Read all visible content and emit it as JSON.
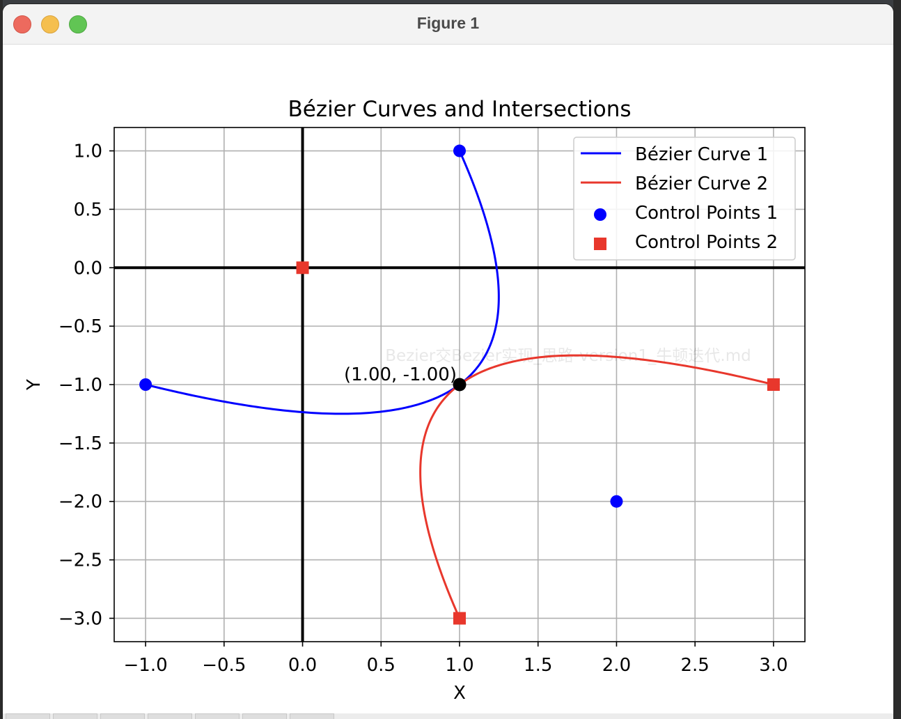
{
  "window": {
    "title": "Figure 1"
  },
  "chart_data": {
    "type": "line",
    "title": "Bézier Curves and Intersections",
    "xlabel": "X",
    "ylabel": "Y",
    "xlim": [
      -1.2,
      3.2
    ],
    "ylim": [
      -3.2,
      1.2
    ],
    "xticks": [
      -1.0,
      -0.5,
      0.0,
      0.5,
      1.0,
      1.5,
      2.0,
      2.5,
      3.0
    ],
    "xtick_labels": [
      "−1.0",
      "−0.5",
      "0.0",
      "0.5",
      "1.0",
      "1.5",
      "2.0",
      "2.5",
      "3.0"
    ],
    "yticks": [
      1.0,
      0.5,
      0.0,
      -0.5,
      -1.0,
      -1.5,
      -2.0,
      -2.5,
      -3.0
    ],
    "ytick_labels": [
      "1.0",
      "0.5",
      "0.0",
      "−0.5",
      "−1.0",
      "−1.5",
      "−2.0",
      "−2.5",
      "−3.0"
    ],
    "grid": true,
    "legend_position": "top-right",
    "series": [
      {
        "name": "Bézier Curve 1",
        "kind": "bezier",
        "color": "#0000ff",
        "control_points": [
          [
            -1,
            -1
          ],
          [
            2,
            -2
          ],
          [
            1,
            1
          ]
        ]
      },
      {
        "name": "Bézier Curve 2",
        "kind": "bezier",
        "color": "#e8372c",
        "control_points": [
          [
            1,
            -3
          ],
          [
            0,
            0
          ],
          [
            3,
            -1
          ]
        ]
      },
      {
        "name": "Control Points 1",
        "kind": "scatter",
        "marker": "circle",
        "color": "#0000ff",
        "points": [
          [
            -1,
            -1
          ],
          [
            2,
            -2
          ],
          [
            1,
            1
          ]
        ]
      },
      {
        "name": "Control Points 2",
        "kind": "scatter",
        "marker": "square",
        "color": "#e8372c",
        "points": [
          [
            1,
            -3
          ],
          [
            0,
            0
          ],
          [
            3,
            -1
          ]
        ]
      }
    ],
    "intersections": [
      {
        "x": 1.0,
        "y": -1.0,
        "label": "(1.00, -1.00)"
      }
    ],
    "axis_lines": [
      {
        "orientation": "horizontal",
        "value": 0
      },
      {
        "orientation": "vertical",
        "value": 0
      }
    ]
  },
  "overlay_text": "Bezier交Bezier实现_思路-version1_牛顿迭代.md"
}
